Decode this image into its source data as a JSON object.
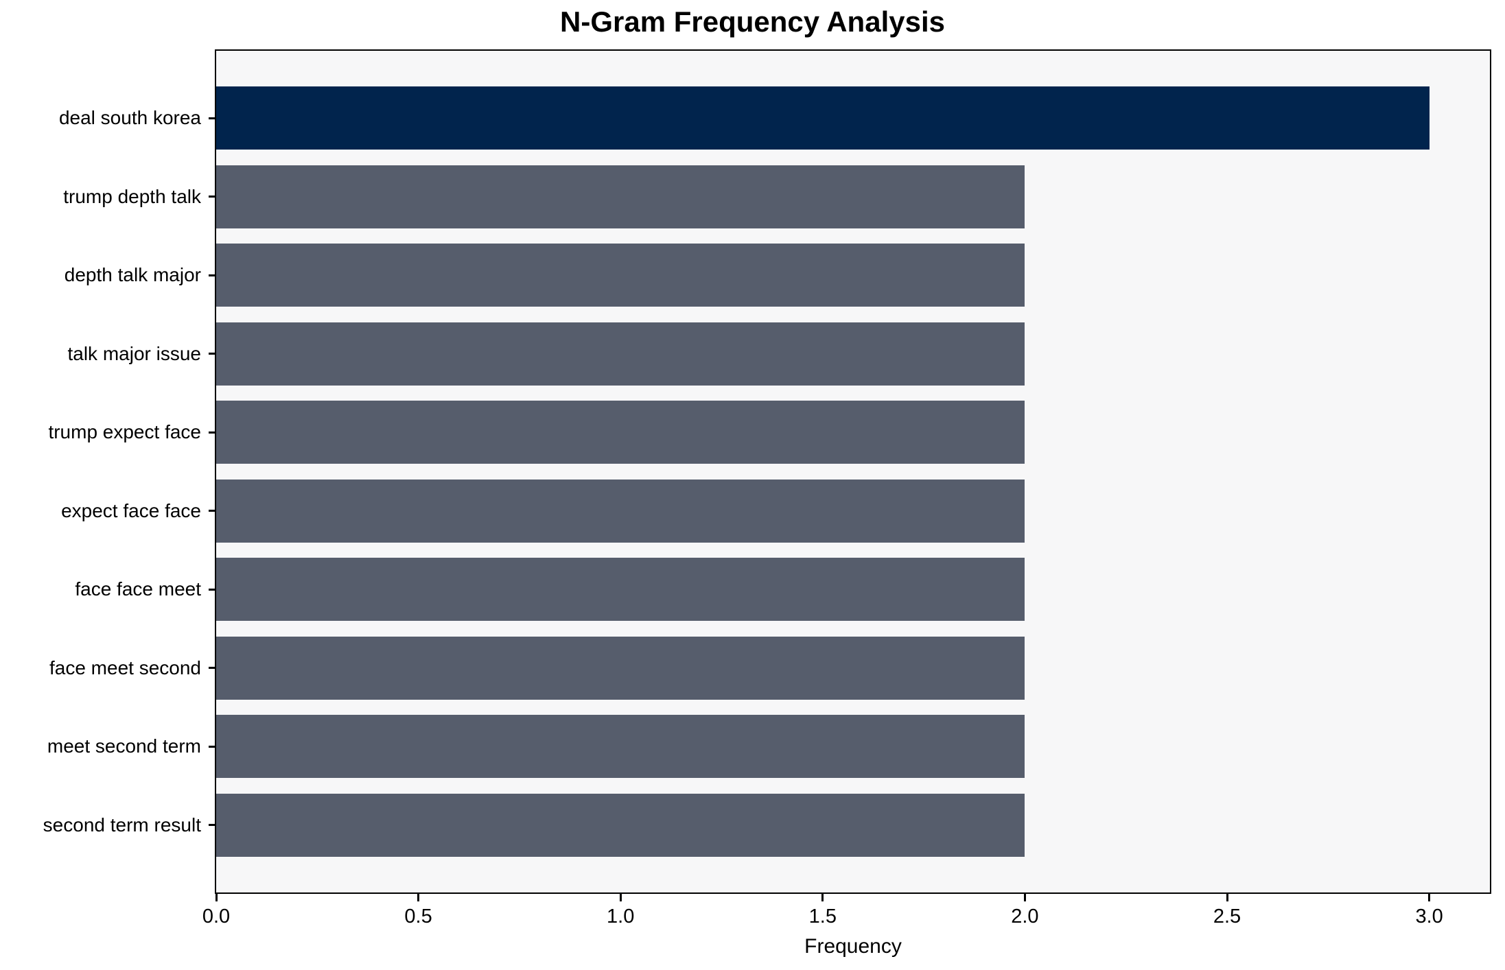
{
  "chart_data": {
    "type": "bar",
    "orientation": "horizontal",
    "title": "N-Gram Frequency Analysis",
    "xlabel": "Frequency",
    "ylabel": "",
    "categories": [
      "deal south korea",
      "trump depth talk",
      "depth talk major",
      "talk major issue",
      "trump expect face",
      "expect face face",
      "face face meet",
      "face meet second",
      "meet second term",
      "second term result"
    ],
    "values": [
      3,
      2,
      2,
      2,
      2,
      2,
      2,
      2,
      2,
      2
    ],
    "xlim": [
      0,
      3.15
    ],
    "xticks": [
      {
        "value": 0.0,
        "label": "0.0"
      },
      {
        "value": 0.5,
        "label": "0.5"
      },
      {
        "value": 1.0,
        "label": "1.0"
      },
      {
        "value": 1.5,
        "label": "1.5"
      },
      {
        "value": 2.0,
        "label": "2.0"
      },
      {
        "value": 2.5,
        "label": "2.5"
      },
      {
        "value": 3.0,
        "label": "3.0"
      }
    ],
    "grid": false,
    "legend": null,
    "colors": {
      "max_bar": "#01244D",
      "default_bar": "#565D6C",
      "plot_background": "#F7F7F8",
      "figure_background": "#FFFFFF",
      "axis_line": "#000000",
      "text": "#000000"
    }
  }
}
